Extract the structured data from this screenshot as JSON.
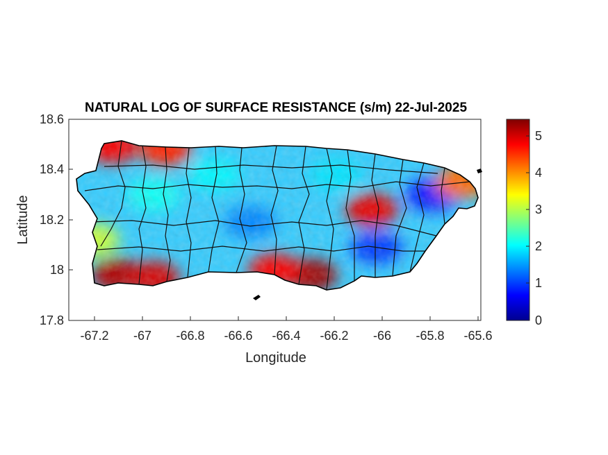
{
  "title": "NATURAL LOG OF SURFACE RESISTANCE (s/m) 22-Jul-2025",
  "xlabel": "Longitude",
  "ylabel": "Latitude",
  "x_ticks": [
    "-67.2",
    "-67",
    "-66.8",
    "-66.6",
    "-66.4",
    "-66.2",
    "-66",
    "-65.8",
    "-65.6"
  ],
  "y_ticks": [
    "18.6",
    "18.4",
    "18.2",
    "18",
    "17.8"
  ],
  "colorbar_ticks": [
    "5",
    "4",
    "3",
    "2",
    "1",
    "0"
  ],
  "colormap": "jet",
  "colors": {
    "jet": [
      "#00008f",
      "#0000ff",
      "#0080ff",
      "#00ffff",
      "#80ff80",
      "#ffff00",
      "#ff8000",
      "#ff0000",
      "#800000"
    ],
    "outline": "#000000",
    "axis": "#262626"
  },
  "chart_data": {
    "type": "heatmap",
    "title": "NATURAL LOG OF SURFACE RESISTANCE (s/m) 22-Jul-2025",
    "xlabel": "Longitude",
    "ylabel": "Latitude",
    "xlim": [
      -67.3,
      -65.6
    ],
    "ylim": [
      17.8,
      18.6
    ],
    "clim": [
      0,
      5.45
    ],
    "colormap": "jet",
    "grid": false,
    "regions": [
      {
        "name": "",
        "lon": -67.12,
        "lat": 18.49,
        "value": 4.8
      },
      {
        "name": "",
        "lon": -66.9,
        "lat": 18.48,
        "value": 4.6
      },
      {
        "name": "",
        "lon": -67.1,
        "lat": 17.98,
        "value": 5.2
      },
      {
        "name": "",
        "lon": -66.95,
        "lat": 17.97,
        "value": 5.0
      },
      {
        "name": "",
        "lon": -66.3,
        "lat": 17.98,
        "value": 5.3
      },
      {
        "name": "",
        "lon": -66.45,
        "lat": 18.0,
        "value": 4.8
      },
      {
        "name": "",
        "lon": -66.05,
        "lat": 18.24,
        "value": 4.9
      },
      {
        "name": "",
        "lon": -66.55,
        "lat": 18.19,
        "value": 1.4
      },
      {
        "name": "",
        "lon": -66.03,
        "lat": 18.09,
        "value": 1.0
      },
      {
        "name": "",
        "lon": -65.8,
        "lat": 18.3,
        "value": 0.8
      },
      {
        "name": "",
        "lon": -66.95,
        "lat": 18.3,
        "value": 2.1
      },
      {
        "name": "",
        "lon": -66.7,
        "lat": 18.38,
        "value": 2.0
      },
      {
        "name": "",
        "lon": -66.2,
        "lat": 18.38,
        "value": 1.9
      },
      {
        "name": "",
        "lon": -65.68,
        "lat": 18.35,
        "value": 4.2
      },
      {
        "name": "",
        "lon": -67.2,
        "lat": 18.12,
        "value": 3.1
      }
    ]
  }
}
